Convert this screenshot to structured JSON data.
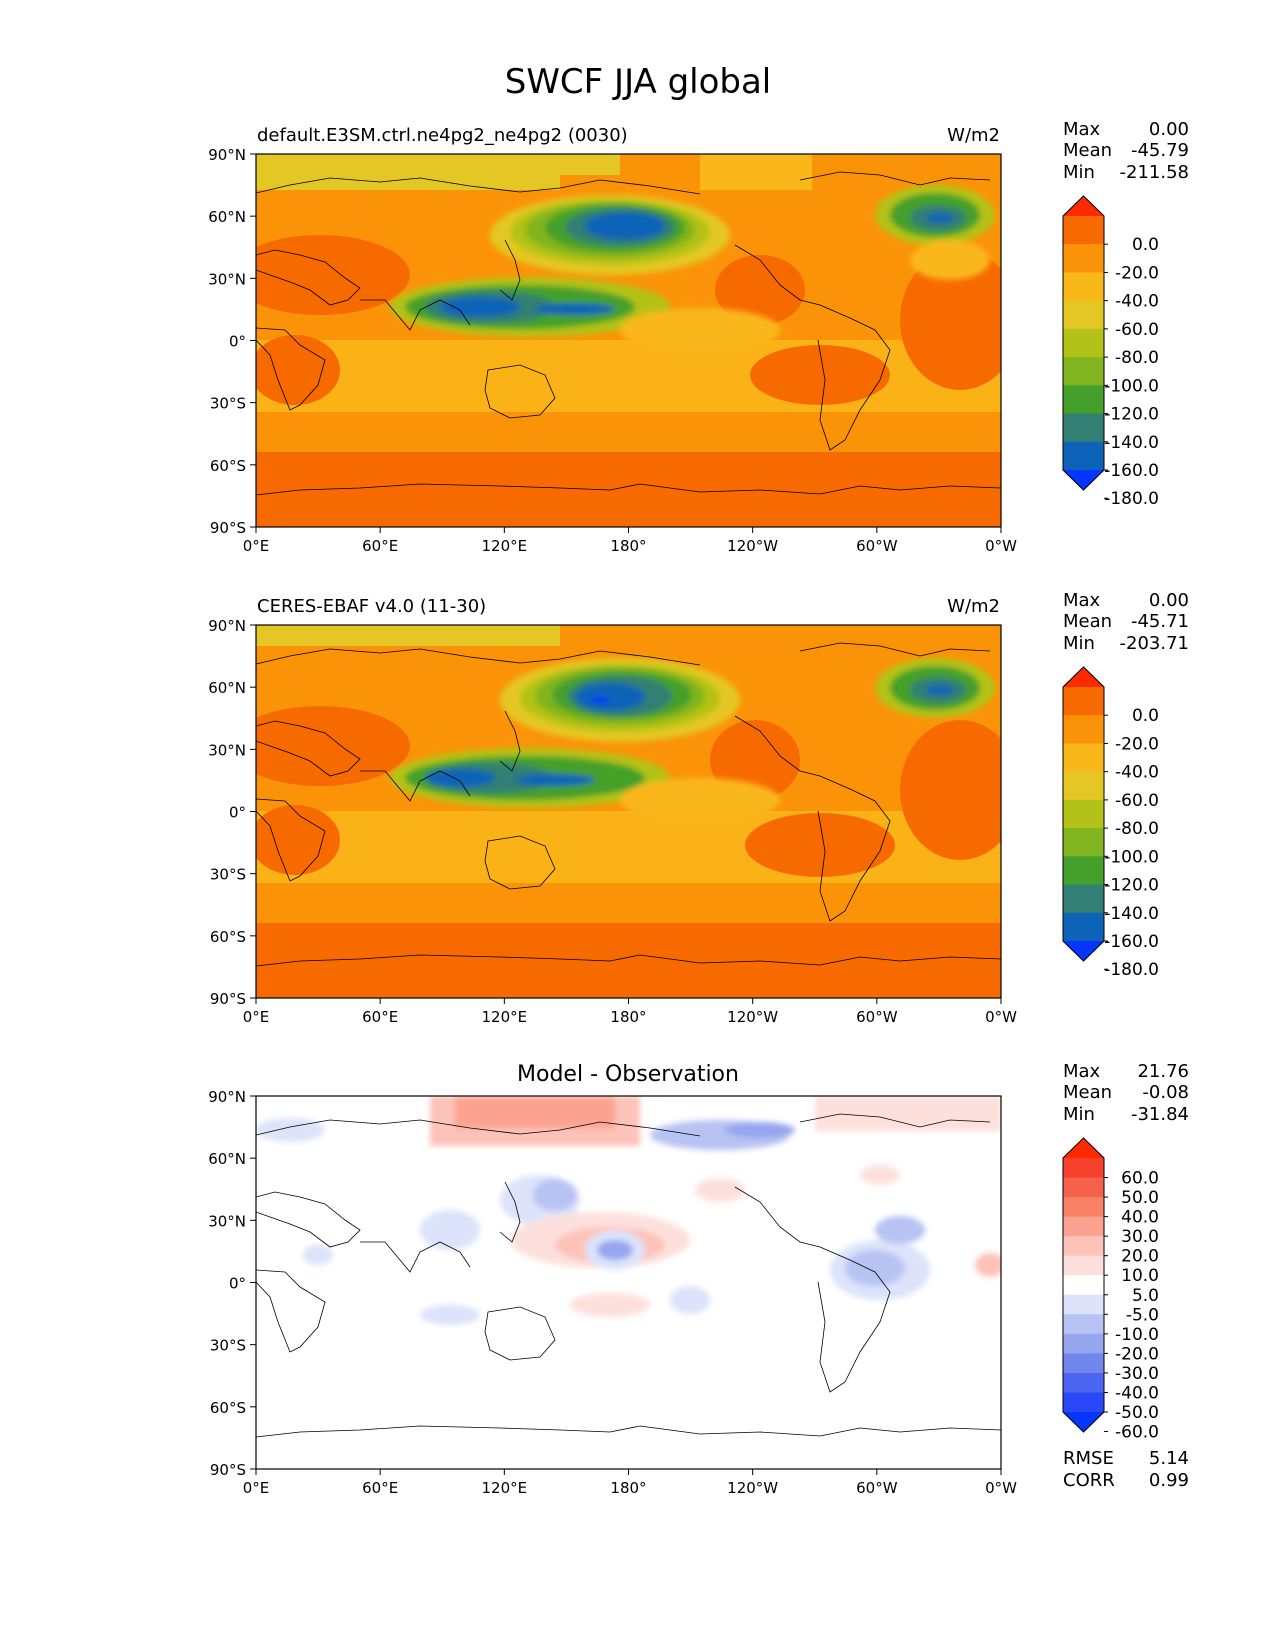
{
  "title": "SWCF JJA global",
  "panels": [
    {
      "left_title": "default.E3SM.ctrl.ne4pg2_ne4pg2 (0030)",
      "center_title": "",
      "units": "W/m2",
      "stats": [
        {
          "label": "Max",
          "value": "0.00"
        },
        {
          "label": "Mean",
          "value": "-45.79"
        },
        {
          "label": "Min",
          "value": "-211.58"
        }
      ],
      "colorbar": {
        "tick_labels": [
          "0.0",
          "-20.0",
          "-40.0",
          "-60.0",
          "-80.0",
          "-100.0",
          "-120.0",
          "-140.0",
          "-160.0",
          "-180.0"
        ],
        "colors": [
          "#ff2a00",
          "#f76a00",
          "#fb9308",
          "#f9b71a",
          "#e4c724",
          "#b3c219",
          "#82b41f",
          "#44a02a",
          "#327f73",
          "#0c63b8",
          "#0436ff"
        ]
      },
      "footer": []
    },
    {
      "left_title": "CERES-EBAF v4.0 (11-30)",
      "center_title": "",
      "units": "W/m2",
      "stats": [
        {
          "label": "Max",
          "value": "0.00"
        },
        {
          "label": "Mean",
          "value": "-45.71"
        },
        {
          "label": "Min",
          "value": "-203.71"
        }
      ],
      "colorbar": {
        "tick_labels": [
          "0.0",
          "-20.0",
          "-40.0",
          "-60.0",
          "-80.0",
          "-100.0",
          "-120.0",
          "-140.0",
          "-160.0",
          "-180.0"
        ],
        "colors": [
          "#ff2a00",
          "#f76a00",
          "#fb9308",
          "#f9b71a",
          "#e4c724",
          "#b3c219",
          "#82b41f",
          "#44a02a",
          "#327f73",
          "#0c63b8",
          "#0436ff"
        ]
      },
      "footer": []
    },
    {
      "left_title": "",
      "center_title": "Model - Observation",
      "units": "",
      "stats": [
        {
          "label": "Max",
          "value": "21.76"
        },
        {
          "label": "Mean",
          "value": "-0.08"
        },
        {
          "label": "Min",
          "value": "-31.84"
        }
      ],
      "colorbar": {
        "tick_labels": [
          "60.0",
          "50.0",
          "40.0",
          "30.0",
          "20.0",
          "10.0",
          "5.0",
          "-5.0",
          "-10.0",
          "-20.0",
          "-30.0",
          "-40.0",
          "-50.0",
          "-60.0"
        ],
        "colors": [
          "#ff2a00",
          "#f8412c",
          "#f6614b",
          "#f88166",
          "#fca290",
          "#fdc2b8",
          "#fde0dc",
          "#ffffff",
          "#dce3fa",
          "#b7c3f3",
          "#96a6ef",
          "#7287ed",
          "#4d66f2",
          "#2a48f7",
          "#0436ff"
        ]
      },
      "footer": [
        {
          "label": "RMSE",
          "value": "5.14"
        },
        {
          "label": "CORR",
          "value": "0.99"
        }
      ]
    }
  ],
  "lat_ticks": [
    "90°N",
    "60°N",
    "30°N",
    "0°",
    "30°S",
    "60°S",
    "90°S"
  ],
  "lon_ticks": [
    "0°E",
    "60°E",
    "120°E",
    "180°",
    "120°W",
    "60°W",
    "0°W"
  ]
}
